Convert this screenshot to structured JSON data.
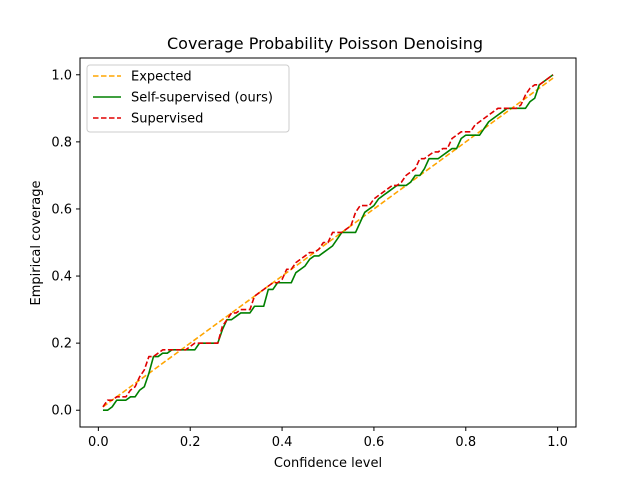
{
  "chart_data": {
    "type": "line",
    "title": "Coverage Probability Poisson Denoising",
    "xlabel": "Confidence level",
    "ylabel": "Empirical coverage",
    "xlim": [
      -0.04,
      1.04
    ],
    "ylim": [
      -0.05,
      1.05
    ],
    "xticks": [
      0.0,
      0.2,
      0.4,
      0.6,
      0.8,
      1.0
    ],
    "yticks": [
      0.0,
      0.2,
      0.4,
      0.6,
      0.8,
      1.0
    ],
    "xtick_labels": [
      "0.0",
      "0.2",
      "0.4",
      "0.6",
      "0.8",
      "1.0"
    ],
    "ytick_labels": [
      "0.0",
      "0.2",
      "0.4",
      "0.6",
      "0.8",
      "1.0"
    ],
    "grid": false,
    "legend_position": "top-left",
    "series": [
      {
        "name": "Expected",
        "color": "#ffa500",
        "dash": "dashed",
        "x": [
          0.01,
          0.99
        ],
        "y": [
          0.01,
          0.99
        ]
      },
      {
        "name": "Self-supervised (ours)",
        "color": "#008000",
        "dash": "solid",
        "x": [
          0.01,
          0.02,
          0.03,
          0.04,
          0.05,
          0.06,
          0.07,
          0.08,
          0.09,
          0.1,
          0.11,
          0.12,
          0.13,
          0.14,
          0.15,
          0.16,
          0.17,
          0.18,
          0.19,
          0.2,
          0.21,
          0.22,
          0.23,
          0.24,
          0.25,
          0.26,
          0.27,
          0.28,
          0.29,
          0.3,
          0.31,
          0.32,
          0.33,
          0.34,
          0.35,
          0.36,
          0.37,
          0.38,
          0.39,
          0.4,
          0.41,
          0.42,
          0.43,
          0.44,
          0.45,
          0.46,
          0.47,
          0.48,
          0.49,
          0.5,
          0.51,
          0.52,
          0.53,
          0.54,
          0.55,
          0.56,
          0.57,
          0.58,
          0.59,
          0.6,
          0.61,
          0.62,
          0.63,
          0.64,
          0.65,
          0.66,
          0.67,
          0.68,
          0.69,
          0.7,
          0.71,
          0.72,
          0.73,
          0.74,
          0.75,
          0.76,
          0.77,
          0.78,
          0.79,
          0.8,
          0.81,
          0.82,
          0.83,
          0.84,
          0.85,
          0.86,
          0.87,
          0.88,
          0.89,
          0.9,
          0.91,
          0.92,
          0.93,
          0.94,
          0.95,
          0.96,
          0.97,
          0.98,
          0.99
        ],
        "y": [
          0.0,
          0.0,
          0.01,
          0.03,
          0.03,
          0.03,
          0.04,
          0.04,
          0.06,
          0.07,
          0.11,
          0.16,
          0.16,
          0.17,
          0.17,
          0.18,
          0.18,
          0.18,
          0.18,
          0.18,
          0.18,
          0.2,
          0.2,
          0.2,
          0.2,
          0.2,
          0.24,
          0.27,
          0.27,
          0.28,
          0.29,
          0.29,
          0.29,
          0.31,
          0.31,
          0.31,
          0.36,
          0.36,
          0.38,
          0.38,
          0.38,
          0.38,
          0.41,
          0.42,
          0.43,
          0.45,
          0.46,
          0.46,
          0.47,
          0.48,
          0.49,
          0.51,
          0.53,
          0.53,
          0.53,
          0.53,
          0.56,
          0.59,
          0.6,
          0.61,
          0.63,
          0.64,
          0.65,
          0.66,
          0.67,
          0.67,
          0.67,
          0.68,
          0.7,
          0.7,
          0.72,
          0.75,
          0.75,
          0.75,
          0.76,
          0.77,
          0.78,
          0.78,
          0.81,
          0.82,
          0.82,
          0.82,
          0.82,
          0.84,
          0.86,
          0.87,
          0.88,
          0.89,
          0.9,
          0.9,
          0.9,
          0.9,
          0.9,
          0.92,
          0.93,
          0.97,
          0.98,
          0.99,
          1.0
        ]
      },
      {
        "name": "Supervised",
        "color": "#e00000",
        "dash": "dashed",
        "x": [
          0.01,
          0.02,
          0.03,
          0.04,
          0.05,
          0.06,
          0.07,
          0.08,
          0.09,
          0.1,
          0.11,
          0.12,
          0.13,
          0.14,
          0.15,
          0.16,
          0.17,
          0.18,
          0.19,
          0.2,
          0.21,
          0.22,
          0.23,
          0.24,
          0.25,
          0.26,
          0.27,
          0.28,
          0.29,
          0.3,
          0.31,
          0.32,
          0.33,
          0.34,
          0.35,
          0.36,
          0.37,
          0.38,
          0.39,
          0.4,
          0.41,
          0.42,
          0.43,
          0.44,
          0.45,
          0.46,
          0.47,
          0.48,
          0.49,
          0.5,
          0.51,
          0.52,
          0.53,
          0.54,
          0.55,
          0.56,
          0.57,
          0.58,
          0.59,
          0.6,
          0.61,
          0.62,
          0.63,
          0.64,
          0.65,
          0.66,
          0.67,
          0.68,
          0.69,
          0.7,
          0.71,
          0.72,
          0.73,
          0.74,
          0.75,
          0.76,
          0.77,
          0.78,
          0.79,
          0.8,
          0.81,
          0.82,
          0.83,
          0.84,
          0.85,
          0.86,
          0.87,
          0.88,
          0.89,
          0.9,
          0.91,
          0.92,
          0.93,
          0.94,
          0.95,
          0.96,
          0.97,
          0.98,
          0.99
        ],
        "y": [
          0.01,
          0.03,
          0.03,
          0.04,
          0.04,
          0.04,
          0.06,
          0.07,
          0.1,
          0.12,
          0.16,
          0.16,
          0.17,
          0.18,
          0.18,
          0.18,
          0.18,
          0.18,
          0.18,
          0.19,
          0.2,
          0.2,
          0.2,
          0.2,
          0.2,
          0.2,
          0.25,
          0.27,
          0.29,
          0.29,
          0.3,
          0.3,
          0.3,
          0.34,
          0.35,
          0.36,
          0.37,
          0.38,
          0.38,
          0.39,
          0.42,
          0.42,
          0.44,
          0.45,
          0.46,
          0.47,
          0.47,
          0.48,
          0.5,
          0.5,
          0.53,
          0.53,
          0.53,
          0.54,
          0.55,
          0.59,
          0.61,
          0.61,
          0.61,
          0.63,
          0.64,
          0.65,
          0.66,
          0.67,
          0.67,
          0.68,
          0.7,
          0.71,
          0.72,
          0.75,
          0.75,
          0.76,
          0.77,
          0.77,
          0.78,
          0.78,
          0.81,
          0.82,
          0.83,
          0.83,
          0.83,
          0.85,
          0.86,
          0.87,
          0.88,
          0.89,
          0.9,
          0.9,
          0.9,
          0.9,
          0.9,
          0.91,
          0.94,
          0.96,
          0.97,
          0.97,
          0.98,
          0.99,
          1.0
        ]
      }
    ]
  }
}
